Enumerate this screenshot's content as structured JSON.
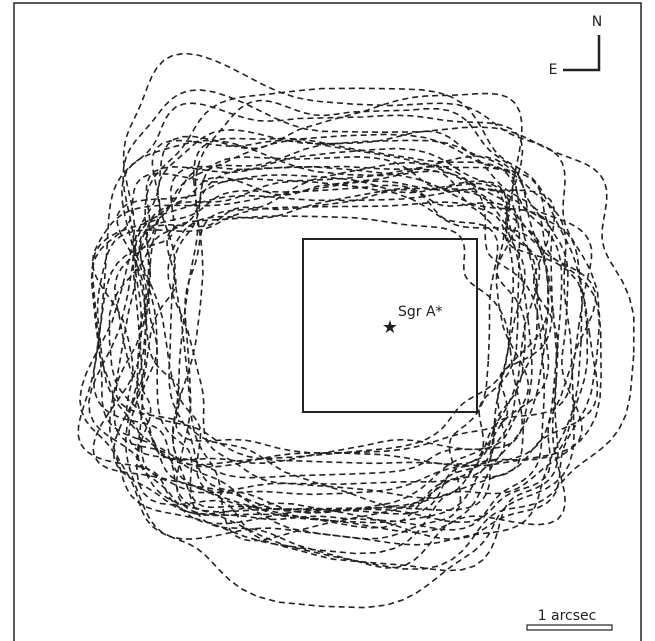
{
  "compass": {
    "north": "N",
    "east": "E"
  },
  "source": {
    "label": "Sgr A*"
  },
  "scale_bar": {
    "label": "1 arcsec"
  }
}
